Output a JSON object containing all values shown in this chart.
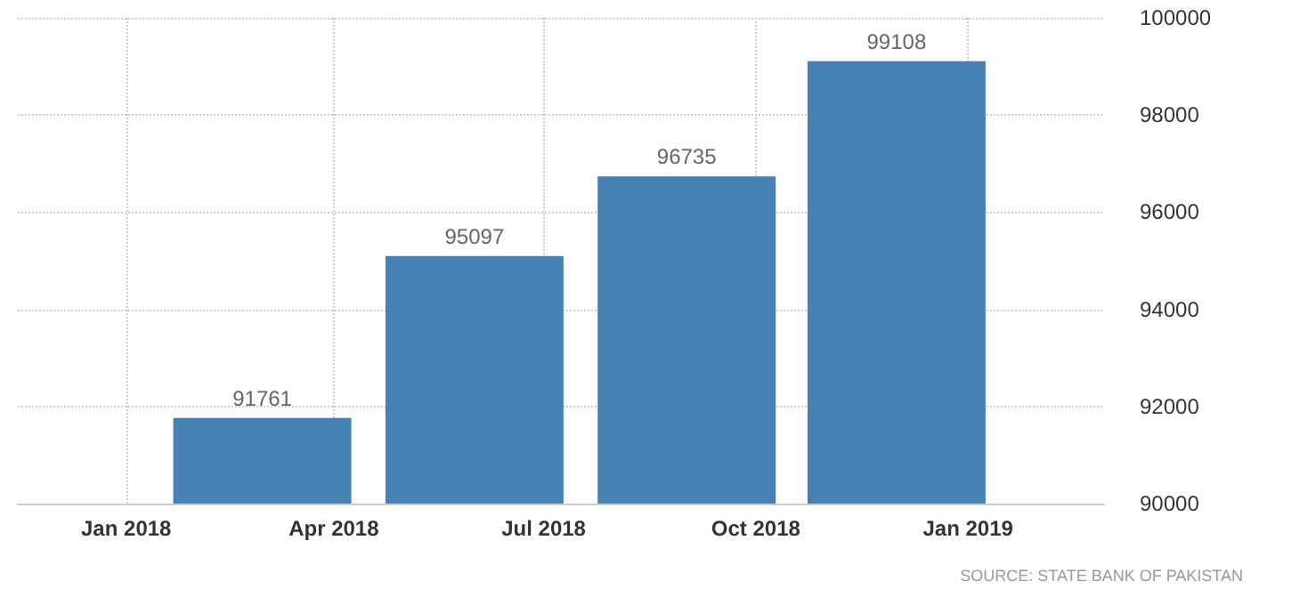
{
  "chart_data": {
    "type": "bar",
    "x": [
      "2018-03",
      "2018-06",
      "2018-09",
      "2018-12"
    ],
    "values": [
      91761,
      95097,
      96735,
      99108
    ],
    "color": "#4682b4",
    "data_labels": true,
    "xlim": [
      "2017-11-15",
      "2019-03-01"
    ],
    "xticks": [
      {
        "value": "2018-01",
        "label": "Jan 2018"
      },
      {
        "value": "2018-04",
        "label": "Apr 2018"
      },
      {
        "value": "2018-07",
        "label": "Jul 2018"
      },
      {
        "value": "2018-10",
        "label": "Oct 2018"
      },
      {
        "value": "2019-01",
        "label": "Jan 2019"
      }
    ],
    "ylim": [
      90000,
      100000
    ],
    "yticks": [
      90000,
      92000,
      94000,
      96000,
      98000,
      100000
    ],
    "grid": true,
    "annotations": [
      "SOURCE: STATE BANK OF PAKISTAN"
    ]
  }
}
